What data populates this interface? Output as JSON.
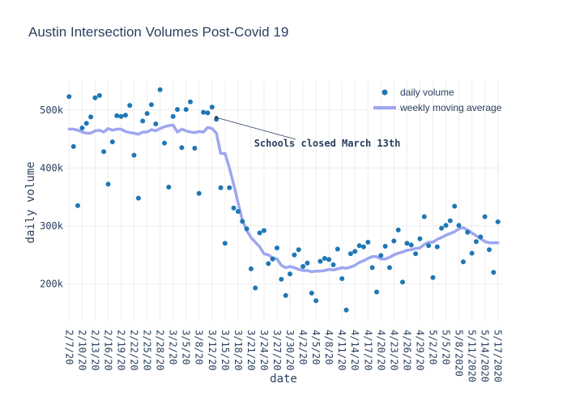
{
  "chart_data": {
    "type": "scatter",
    "title": "Austin Intersection Volumes Post-Covid 19",
    "xlabel": "date",
    "ylabel": "daily volume",
    "ylim": [
      135000,
      550000
    ],
    "y_ticks": [
      200000,
      300000,
      400000,
      500000
    ],
    "y_tick_labels": [
      "200k",
      "300k",
      "400k",
      "500k"
    ],
    "x_ticks": [
      3,
      6,
      9,
      12,
      15,
      18,
      21,
      24,
      27,
      30,
      33,
      36,
      39,
      42,
      45,
      48,
      51,
      54,
      57,
      60,
      63,
      66,
      69,
      72,
      75,
      78,
      81,
      84,
      87,
      90,
      93,
      96,
      99,
      102
    ],
    "x_tick_labels": [
      "2/7/20",
      "2/10/20",
      "2/13/20",
      "2/16/20",
      "2/19/20",
      "2/22/20",
      "2/25/20",
      "2/28/20",
      "3/2/20",
      "3/5/20",
      "3/8/20",
      "3/12/20",
      "3/15/20",
      "3/18/20",
      "3/21/20",
      "3/24/20",
      "3/27/20",
      "3/30/20",
      "4/2/20",
      "4/5/20",
      "4/8/20",
      "4/11/20",
      "4/14/20",
      "4/17/20",
      "4/20/20",
      "4/23/20",
      "4/26/20",
      "4/29/20",
      "5/2/20",
      "5/5/20",
      "5/8/2020",
      "5/11/2020",
      "5/14/2020",
      "5/17/2020"
    ],
    "legend_position": "top-right",
    "grid": true,
    "series": [
      {
        "name": "daily volume",
        "mode": "markers",
        "color": "#1f77b4",
        "x": [
          3,
          4,
          5,
          6,
          7,
          8,
          9,
          10,
          11,
          12,
          13,
          14,
          15,
          16,
          17,
          18,
          19,
          20,
          21,
          22,
          23,
          24,
          25,
          26,
          27,
          28,
          29,
          30,
          31,
          32,
          33,
          34,
          35,
          36,
          37,
          38,
          39,
          40,
          41,
          42,
          43,
          44,
          45,
          46,
          47,
          48,
          49,
          50,
          51,
          52,
          53,
          54,
          55,
          56,
          57,
          58,
          59,
          60,
          61,
          62,
          63,
          64,
          65,
          66,
          67,
          68,
          69,
          70,
          71,
          72,
          73,
          74,
          75,
          76,
          77,
          78,
          79,
          80,
          81,
          82,
          83,
          84,
          85,
          86,
          87,
          88,
          89,
          90,
          91,
          92,
          93,
          94,
          95,
          96,
          97,
          98,
          99,
          100,
          101,
          102
        ],
        "values": [
          523000,
          437000,
          335000,
          469000,
          477000,
          488000,
          521000,
          525000,
          428000,
          372000,
          445000,
          490000,
          489000,
          491000,
          508000,
          422000,
          348000,
          481000,
          494000,
          509000,
          476000,
          535000,
          443000,
          367000,
          489000,
          501000,
          435000,
          501000,
          514000,
          434000,
          356000,
          496000,
          495000,
          505000,
          484000,
          366000,
          270000,
          366000,
          331000,
          325000,
          308000,
          295000,
          226000,
          193000,
          288000,
          292000,
          235000,
          243000,
          262000,
          208000,
          180000,
          217000,
          250000,
          259000,
          230000,
          236000,
          184000,
          171000,
          239000,
          244000,
          242000,
          233000,
          260000,
          209000,
          155000,
          252000,
          256000,
          266000,
          264000,
          272000,
          228000,
          186000,
          249000,
          265000,
          228000,
          274000,
          293000,
          203000,
          270000,
          267000,
          252000,
          278000,
          316000,
          266000,
          211000,
          264000,
          296000,
          301000,
          309000,
          334000,
          301000,
          238000,
          289000,
          253000,
          273000,
          281000,
          316000,
          259000,
          220000,
          307000
        ],
        "_note": "values aligned with x (one per day)"
      },
      {
        "name": "weekly moving average",
        "mode": "lines",
        "color": "#9ea6f0",
        "x": [
          3,
          4,
          5,
          6,
          7,
          8,
          9,
          10,
          11,
          12,
          13,
          14,
          15,
          16,
          17,
          18,
          19,
          20,
          21,
          22,
          23,
          24,
          25,
          26,
          27,
          28,
          29,
          30,
          31,
          32,
          33,
          34,
          35,
          36,
          37,
          38,
          39,
          40,
          41,
          42,
          43,
          44,
          45,
          46,
          47,
          48,
          49,
          50,
          51,
          52,
          53,
          54,
          55,
          56,
          57,
          58,
          59,
          60,
          61,
          62,
          63,
          64,
          65,
          66,
          67,
          68,
          69,
          70,
          71,
          72,
          73,
          74,
          75,
          76,
          77,
          78,
          79,
          80,
          81,
          82,
          83,
          84,
          85,
          86,
          87,
          88,
          89,
          90,
          91,
          92,
          93,
          94,
          95,
          96,
          97,
          98,
          99,
          100,
          101,
          102
        ],
        "values": [
          467000,
          467000,
          465000,
          462000,
          460000,
          460000,
          464000,
          465000,
          462000,
          468000,
          465000,
          467000,
          467000,
          463000,
          461000,
          460000,
          458000,
          462000,
          462000,
          466000,
          464000,
          468000,
          471000,
          473000,
          474000,
          462000,
          467000,
          464000,
          462000,
          461000,
          463000,
          462000,
          470000,
          468000,
          460000,
          425000,
          425000,
          400000,
          372000,
          340000,
          310000,
          292000,
          280000,
          272000,
          264000,
          252000,
          250000,
          245000,
          243000,
          232000,
          228000,
          230000,
          228000,
          225000,
          223000,
          223000,
          221000,
          222000,
          222000,
          223000,
          225000,
          224000,
          226000,
          228000,
          227000,
          229000,
          232000,
          237000,
          240000,
          244000,
          247000,
          247000,
          243000,
          243000,
          246000,
          250000,
          253000,
          255000,
          258000,
          259000,
          261000,
          262000,
          268000,
          272000,
          272000,
          277000,
          280000,
          284000,
          287000,
          290000,
          295000,
          297000,
          293000,
          288000,
          283000,
          278000,
          273000,
          271000,
          271000,
          271000
        ]
      }
    ],
    "annotations": [
      {
        "text": "Schools closed March 13th",
        "x": 37,
        "y": 487000
      }
    ]
  }
}
